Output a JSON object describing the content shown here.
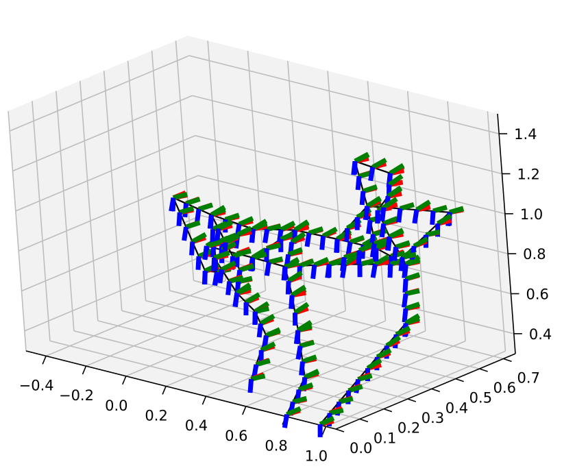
{
  "chart_data": {
    "type": "line",
    "projection": "3d",
    "title": "",
    "xlabel": "",
    "ylabel": "",
    "zlabel": "",
    "grid": true,
    "pane_color": "#f2f2f2",
    "grid_color": "#bdbdbd",
    "edge_color": "#000000",
    "frame_colors": {
      "x": "#ff0000",
      "y": "#008000",
      "z": "#0000ff"
    },
    "xlim": [
      -0.5,
      1.05
    ],
    "ylim": [
      0.0,
      0.75
    ],
    "zlim": [
      0.3,
      1.5
    ],
    "x_ticks": [
      -0.4,
      -0.2,
      0.0,
      0.2,
      0.4,
      0.6,
      0.8,
      1.0
    ],
    "x_tick_labels": [
      "−0.4",
      "−0.2",
      "0.0",
      "0.2",
      "0.4",
      "0.6",
      "0.8",
      "1.0"
    ],
    "y_ticks": [
      0.0,
      0.1,
      0.2,
      0.3,
      0.4,
      0.5,
      0.6,
      0.7
    ],
    "y_tick_labels": [
      "0.0",
      "0.1",
      "0.2",
      "0.3",
      "0.4",
      "0.5",
      "0.6",
      "0.7"
    ],
    "z_ticks": [
      0.4,
      0.6,
      0.8,
      1.0,
      1.2,
      1.4
    ],
    "z_tick_labels": [
      "0.4",
      "0.6",
      "0.8",
      "1.0",
      "1.2",
      "1.4"
    ],
    "nodes": [
      {
        "id": "n0",
        "x": -0.32,
        "y": 0.5,
        "z": 0.86
      },
      {
        "id": "n1",
        "x": -0.12,
        "y": 0.49,
        "z": 0.83
      },
      {
        "id": "n2",
        "x": 0.1,
        "y": 0.48,
        "z": 0.82
      },
      {
        "id": "n3",
        "x": 0.3,
        "y": 0.49,
        "z": 0.86
      },
      {
        "id": "n4",
        "x": 0.5,
        "y": 0.5,
        "z": 0.86
      },
      {
        "id": "n5",
        "x": 0.72,
        "y": 0.48,
        "z": 0.88
      },
      {
        "id": "n6",
        "x": 0.84,
        "y": 0.5,
        "z": 0.82
      },
      {
        "id": "n7",
        "x": 0.02,
        "y": 0.35,
        "z": 0.78
      },
      {
        "id": "n8",
        "x": 0.25,
        "y": 0.35,
        "z": 0.78
      },
      {
        "id": "n9",
        "x": 0.45,
        "y": 0.32,
        "z": 0.8
      },
      {
        "id": "n10",
        "x": 0.6,
        "y": 0.38,
        "z": 0.82
      },
      {
        "id": "n11",
        "x": 0.0,
        "y": 0.4,
        "z": 0.62
      },
      {
        "id": "n12",
        "x": -0.06,
        "y": 0.4,
        "z": 0.61
      },
      {
        "id": "n13",
        "x": 0.18,
        "y": 0.35,
        "z": 0.7
      },
      {
        "id": "n14",
        "x": 0.22,
        "y": 0.3,
        "z": 0.62
      },
      {
        "id": "n15",
        "x": 0.23,
        "y": 0.36,
        "z": 0.5
      },
      {
        "id": "n16",
        "x": 0.29,
        "y": 0.35,
        "z": 0.4
      },
      {
        "id": "n17",
        "x": 0.26,
        "y": 0.3,
        "z": 0.2
      },
      {
        "id": "n18",
        "x": 0.5,
        "y": 0.3,
        "z": 0.68
      },
      {
        "id": "n19",
        "x": 0.58,
        "y": 0.25,
        "z": 0.55
      },
      {
        "id": "n20",
        "x": 0.66,
        "y": 0.2,
        "z": 0.36
      },
      {
        "id": "n21",
        "x": 0.68,
        "y": 0.1,
        "z": 0.23
      },
      {
        "id": "n22",
        "x": 0.62,
        "y": 0.5,
        "z": 1.28
      },
      {
        "id": "n23",
        "x": 0.64,
        "y": 0.52,
        "z": 1.05
      },
      {
        "id": "n24",
        "x": 0.82,
        "y": 0.48,
        "z": 1.28
      },
      {
        "id": "n25",
        "x": 0.8,
        "y": 0.48,
        "z": 1.16
      },
      {
        "id": "n26",
        "x": 0.78,
        "y": 0.45,
        "z": 1.1
      },
      {
        "id": "n27",
        "x": 1.02,
        "y": 0.55,
        "z": 1.1
      },
      {
        "id": "n28",
        "x": 0.83,
        "y": 0.45,
        "z": 0.98
      },
      {
        "id": "n29",
        "x": 0.9,
        "y": 0.44,
        "z": 0.9
      },
      {
        "id": "n30",
        "x": 0.88,
        "y": 0.45,
        "z": 0.56
      },
      {
        "id": "n31",
        "x": 0.72,
        "y": 0.2,
        "z": 0.14
      }
    ],
    "edges": [
      [
        "n0",
        "n1"
      ],
      [
        "n1",
        "n2"
      ],
      [
        "n2",
        "n3"
      ],
      [
        "n3",
        "n4"
      ],
      [
        "n4",
        "n5"
      ],
      [
        "n5",
        "n6"
      ],
      [
        "n2",
        "n7"
      ],
      [
        "n7",
        "n8"
      ],
      [
        "n8",
        "n9"
      ],
      [
        "n9",
        "n10"
      ],
      [
        "n10",
        "n6"
      ],
      [
        "n3",
        "n8"
      ],
      [
        "n0",
        "n12"
      ],
      [
        "n12",
        "n11"
      ],
      [
        "n11",
        "n1"
      ],
      [
        "n1",
        "n13"
      ],
      [
        "n13",
        "n14"
      ],
      [
        "n14",
        "n15"
      ],
      [
        "n15",
        "n16"
      ],
      [
        "n16",
        "n17"
      ],
      [
        "n9",
        "n18"
      ],
      [
        "n18",
        "n19"
      ],
      [
        "n19",
        "n20"
      ],
      [
        "n20",
        "n21"
      ],
      [
        "n5",
        "n23"
      ],
      [
        "n23",
        "n22"
      ],
      [
        "n22",
        "n24"
      ],
      [
        "n24",
        "n25"
      ],
      [
        "n25",
        "n26"
      ],
      [
        "n26",
        "n28"
      ],
      [
        "n28",
        "n29"
      ],
      [
        "n29",
        "n6"
      ],
      [
        "n23",
        "n27"
      ],
      [
        "n27",
        "n29"
      ],
      [
        "n4",
        "n23"
      ],
      [
        "n6",
        "n30"
      ],
      [
        "n30",
        "n31"
      ],
      [
        "n10",
        "n28"
      ],
      [
        "n7",
        "n14"
      ],
      [
        "n3",
        "n9"
      ]
    ]
  }
}
